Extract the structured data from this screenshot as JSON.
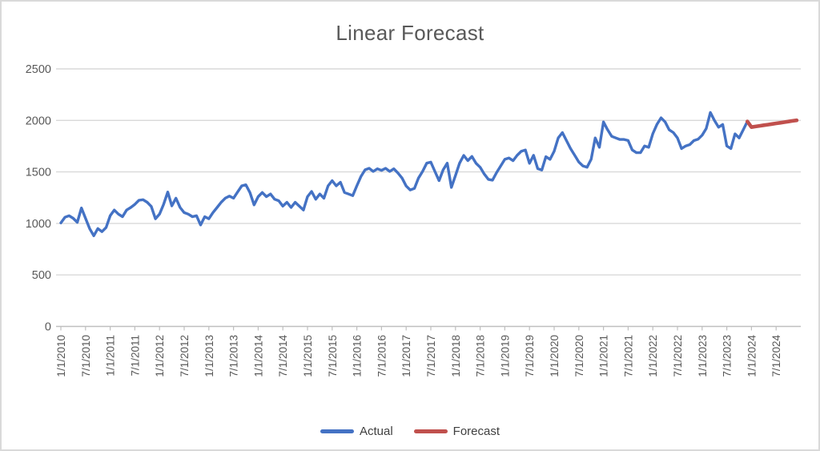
{
  "title": "Linear Forecast",
  "colors": {
    "actual": "#4472C4",
    "forecast": "#C0504D",
    "gridline": "#D9D9D9",
    "axis_line": "#BFBFBF",
    "label_text": "#595959",
    "title_text": "#595959",
    "frame_border": "#D9D9D9",
    "background": "#FFFFFF"
  },
  "legend": {
    "items": [
      {
        "label": "Actual",
        "color": "#4472C4"
      },
      {
        "label": "Forecast",
        "color": "#C0504D"
      }
    ]
  },
  "chart_data": {
    "type": "line",
    "title": "Linear Forecast",
    "grid": true,
    "legend_position": "bottom",
    "ylim": [
      0,
      2500
    ],
    "y_ticks": [
      0,
      500,
      1000,
      1500,
      2000,
      2500
    ],
    "x_frequency": "monthly",
    "x_start": "1/1/2010",
    "months_per_tick": 6,
    "x_tick_labels": [
      "1/1/2010",
      "7/1/2010",
      "1/1/2011",
      "7/1/2011",
      "1/1/2012",
      "7/1/2012",
      "1/1/2013",
      "7/1/2013",
      "1/1/2014",
      "7/1/2014",
      "1/1/2015",
      "7/1/2015",
      "1/1/2016",
      "7/1/2016",
      "1/1/2017",
      "7/1/2017",
      "1/1/2018",
      "7/1/2018",
      "1/1/2019",
      "7/1/2019",
      "1/1/2020",
      "7/1/2020",
      "1/1/2021",
      "7/1/2021",
      "1/1/2022",
      "7/1/2022",
      "1/1/2023",
      "7/1/2023",
      "1/1/2024",
      "7/1/2024"
    ],
    "series": [
      {
        "name": "Actual",
        "color": "#4472C4",
        "start_index": 0,
        "values": [
          1005,
          1060,
          1075,
          1050,
          1010,
          1150,
          1050,
          950,
          880,
          950,
          920,
          960,
          1075,
          1130,
          1090,
          1065,
          1130,
          1155,
          1185,
          1225,
          1230,
          1205,
          1165,
          1045,
          1090,
          1185,
          1305,
          1170,
          1245,
          1155,
          1105,
          1090,
          1065,
          1075,
          985,
          1065,
          1045,
          1105,
          1155,
          1205,
          1245,
          1265,
          1245,
          1305,
          1365,
          1375,
          1300,
          1180,
          1260,
          1300,
          1260,
          1285,
          1235,
          1220,
          1168,
          1205,
          1155,
          1205,
          1168,
          1130,
          1260,
          1310,
          1235,
          1285,
          1245,
          1365,
          1415,
          1365,
          1400,
          1300,
          1285,
          1270,
          1365,
          1455,
          1520,
          1535,
          1505,
          1530,
          1515,
          1535,
          1505,
          1530,
          1490,
          1440,
          1363,
          1325,
          1340,
          1440,
          1505,
          1585,
          1595,
          1505,
          1415,
          1520,
          1585,
          1350,
          1465,
          1585,
          1660,
          1610,
          1650,
          1583,
          1545,
          1480,
          1428,
          1420,
          1493,
          1558,
          1622,
          1635,
          1609,
          1661,
          1700,
          1713,
          1583,
          1661,
          1532,
          1519,
          1648,
          1622,
          1700,
          1830,
          1882,
          1804,
          1726,
          1661,
          1596,
          1558,
          1545,
          1622,
          1830,
          1739,
          1985,
          1910,
          1845,
          1830,
          1815,
          1815,
          1805,
          1713,
          1687,
          1687,
          1752,
          1739,
          1870,
          1960,
          2025,
          1985,
          1908,
          1882,
          1830,
          1726,
          1752,
          1765,
          1804,
          1817,
          1856,
          1921,
          2077,
          1999,
          1934,
          1960,
          1752,
          1726,
          1869,
          1830,
          1908,
          1990
        ]
      },
      {
        "name": "Forecast",
        "color": "#C0504D",
        "start_index": 167,
        "values": [
          1990,
          1935,
          1941,
          1947,
          1953,
          1959,
          1965,
          1971,
          1977,
          1983,
          1989,
          1995,
          2001
        ]
      }
    ]
  }
}
